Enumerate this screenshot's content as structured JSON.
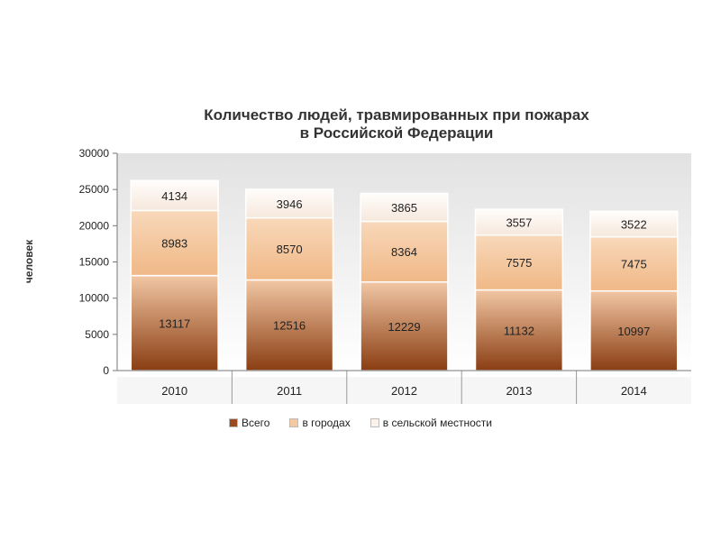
{
  "chart_data": {
    "type": "bar",
    "stacked": true,
    "title_lines": [
      "Количество людей, травмированных при пожарах",
      "в Российской Федерации"
    ],
    "xlabel": "",
    "ylabel": "человек",
    "categories": [
      "2010",
      "2011",
      "2012",
      "2013",
      "2014"
    ],
    "ylim": [
      0,
      30000
    ],
    "yticks": [
      "0",
      "5000",
      "10000",
      "15000",
      "20000",
      "25000",
      "30000"
    ],
    "series": [
      {
        "name": "Всего",
        "values": [
          13117,
          12516,
          12229,
          11132,
          10997
        ],
        "color": "#9a4a1c"
      },
      {
        "name": "в городах",
        "values": [
          8983,
          8570,
          8364,
          7575,
          7475
        ],
        "color": "#f4c8a0"
      },
      {
        "name": "в сельской местности",
        "values": [
          4134,
          3946,
          3865,
          3557,
          3522
        ],
        "color": "#fbf3ea"
      }
    ],
    "grid": false,
    "legend_position": "bottom"
  }
}
